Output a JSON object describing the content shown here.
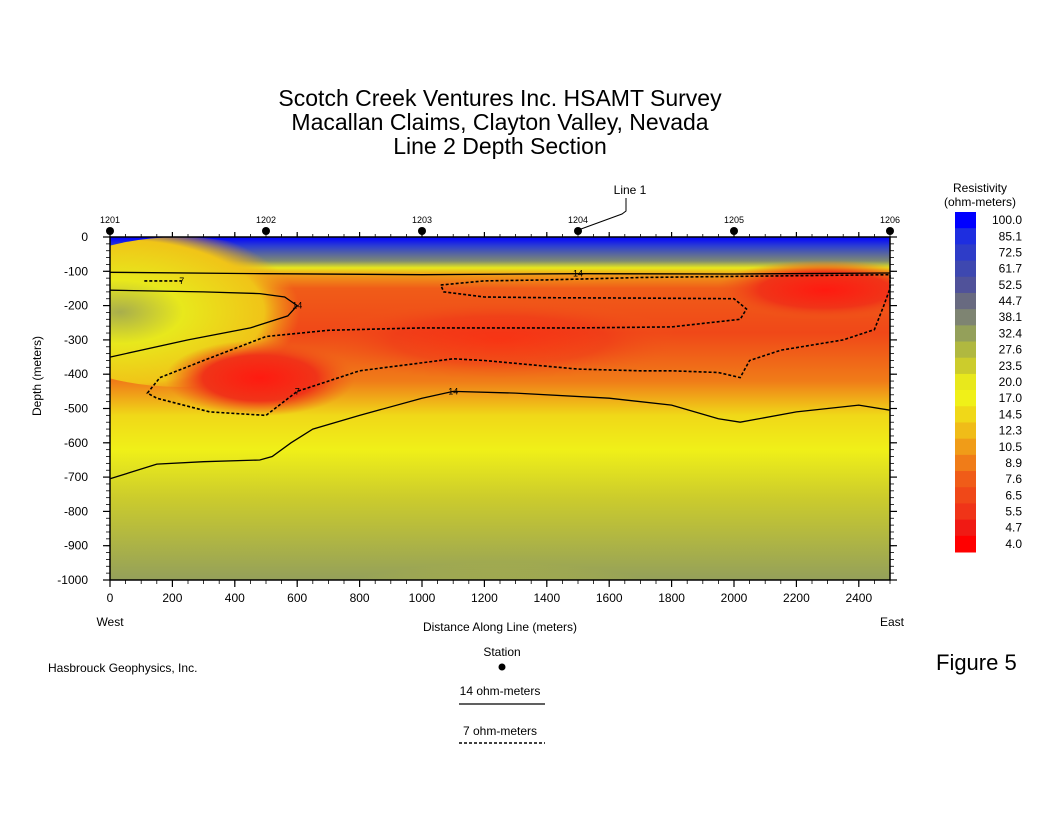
{
  "titles": {
    "line1": "Scotch Creek Ventures Inc. HSAMT Survey",
    "line2": "Macallan Claims, Clayton Valley, Nevada",
    "line3": "Line 2 Depth Section"
  },
  "chart_data": {
    "type": "contour",
    "xlabel": "Distance Along Line (meters)",
    "ylabel": "Depth (meters)",
    "xlim": [
      0,
      2500
    ],
    "ylim": [
      -1000,
      0
    ],
    "x_ticks": [
      "0",
      "200",
      "400",
      "600",
      "800",
      "1000",
      "1200",
      "1400",
      "1600",
      "1800",
      "2000",
      "2200",
      "2400"
    ],
    "y_ticks": [
      "0",
      "-100",
      "-200",
      "-300",
      "-400",
      "-500",
      "-600",
      "-700",
      "-800",
      "-900",
      "-1000"
    ],
    "x_end_labels": {
      "west": "West",
      "east": "East"
    },
    "stations": [
      {
        "name": "1201",
        "x": 0
      },
      {
        "name": "1202",
        "x": 500
      },
      {
        "name": "1203",
        "x": 1000
      },
      {
        "name": "1204",
        "x": 1500
      },
      {
        "name": "1205",
        "x": 2000
      },
      {
        "name": "1206",
        "x": 2500
      }
    ],
    "callout": {
      "label": "Line 1",
      "x": 1500
    },
    "contour_levels": [
      {
        "value": 14,
        "label": "14",
        "style": "solid",
        "lines": [
          [
            [
              0,
              -103
            ],
            [
              500,
              -107
            ],
            [
              1000,
              -110
            ],
            [
              1500,
              -107
            ],
            [
              2000,
              -108
            ],
            [
              2500,
              -105
            ]
          ],
          [
            [
              0,
              -155
            ],
            [
              300,
              -160
            ],
            [
              480,
              -165
            ],
            [
              560,
              -175
            ],
            [
              600,
              -200
            ],
            [
              570,
              -230
            ],
            [
              450,
              -265
            ],
            [
              250,
              -300
            ],
            [
              0,
              -350
            ]
          ],
          [
            [
              0,
              -705
            ],
            [
              150,
              -662
            ],
            [
              300,
              -655
            ],
            [
              480,
              -650
            ],
            [
              520,
              -640
            ],
            [
              580,
              -600
            ],
            [
              650,
              -560
            ],
            [
              800,
              -520
            ],
            [
              1000,
              -470
            ],
            [
              1100,
              -450
            ],
            [
              1300,
              -455
            ],
            [
              1600,
              -470
            ],
            [
              1800,
              -490
            ],
            [
              1950,
              -530
            ],
            [
              2020,
              -540
            ],
            [
              2200,
              -510
            ],
            [
              2400,
              -490
            ],
            [
              2500,
              -505
            ]
          ]
        ]
      },
      {
        "value": 7,
        "label": "7",
        "style": "dashed",
        "lines": [
          [
            [
              110,
              -128
            ],
            [
              230,
              -128
            ]
          ],
          [
            [
              1060,
              -140
            ],
            [
              1200,
              -128
            ],
            [
              1400,
              -125
            ],
            [
              1700,
              -118
            ],
            [
              2000,
              -115
            ],
            [
              2500,
              -110
            ],
            [
              2500,
              -150
            ],
            [
              2480,
              -200
            ],
            [
              2450,
              -270
            ],
            [
              2350,
              -300
            ],
            [
              2150,
              -330
            ],
            [
              2050,
              -360
            ],
            [
              2020,
              -410
            ],
            [
              1950,
              -395
            ],
            [
              1800,
              -390
            ],
            [
              1700,
              -390
            ],
            [
              1500,
              -385
            ],
            [
              1200,
              -360
            ],
            [
              1100,
              -355
            ],
            [
              800,
              -390
            ],
            [
              600,
              -450
            ],
            [
              500,
              -520
            ],
            [
              320,
              -510
            ],
            [
              150,
              -470
            ],
            [
              120,
              -455
            ],
            [
              160,
              -410
            ],
            [
              300,
              -360
            ],
            [
              500,
              -290
            ],
            [
              700,
              -272
            ],
            [
              1000,
              -265
            ],
            [
              1500,
              -265
            ],
            [
              1800,
              -262
            ],
            [
              2020,
              -240
            ],
            [
              2040,
              -210
            ],
            [
              2000,
              -180
            ],
            [
              1700,
              -178
            ],
            [
              1400,
              -177
            ],
            [
              1200,
              -175
            ],
            [
              1070,
              -160
            ],
            [
              1060,
              -140
            ]
          ]
        ]
      }
    ],
    "colorbar": {
      "title_line1": "Resistivity",
      "title_line2": "(ohm-meters)",
      "values": [
        "100.0",
        "85.1",
        "72.5",
        "61.7",
        "52.5",
        "44.7",
        "38.1",
        "32.4",
        "27.6",
        "23.5",
        "20.0",
        "17.0",
        "14.5",
        "12.3",
        "10.5",
        "8.9",
        "7.6",
        "6.5",
        "5.5",
        "4.7",
        "4.0"
      ],
      "colors": [
        "#0000ff",
        "#1e2ee0",
        "#2e3cc8",
        "#3e48b0",
        "#50529a",
        "#686a80",
        "#7e8472",
        "#94a05a",
        "#b0b840",
        "#cccc2c",
        "#e8e81c",
        "#f0f018",
        "#f0d818",
        "#f0bc18",
        "#f09c18",
        "#f07c18",
        "#f05c18",
        "#f04818",
        "#f03418",
        "#f01a14",
        "#ff0000"
      ]
    },
    "legend": {
      "station_label": "Station",
      "line14_label": "14 ohm-meters",
      "line7_label": "7 ohm-meters"
    }
  },
  "footer": {
    "company": "Hasbrouck Geophysics, Inc.",
    "figure": "Figure 5"
  }
}
